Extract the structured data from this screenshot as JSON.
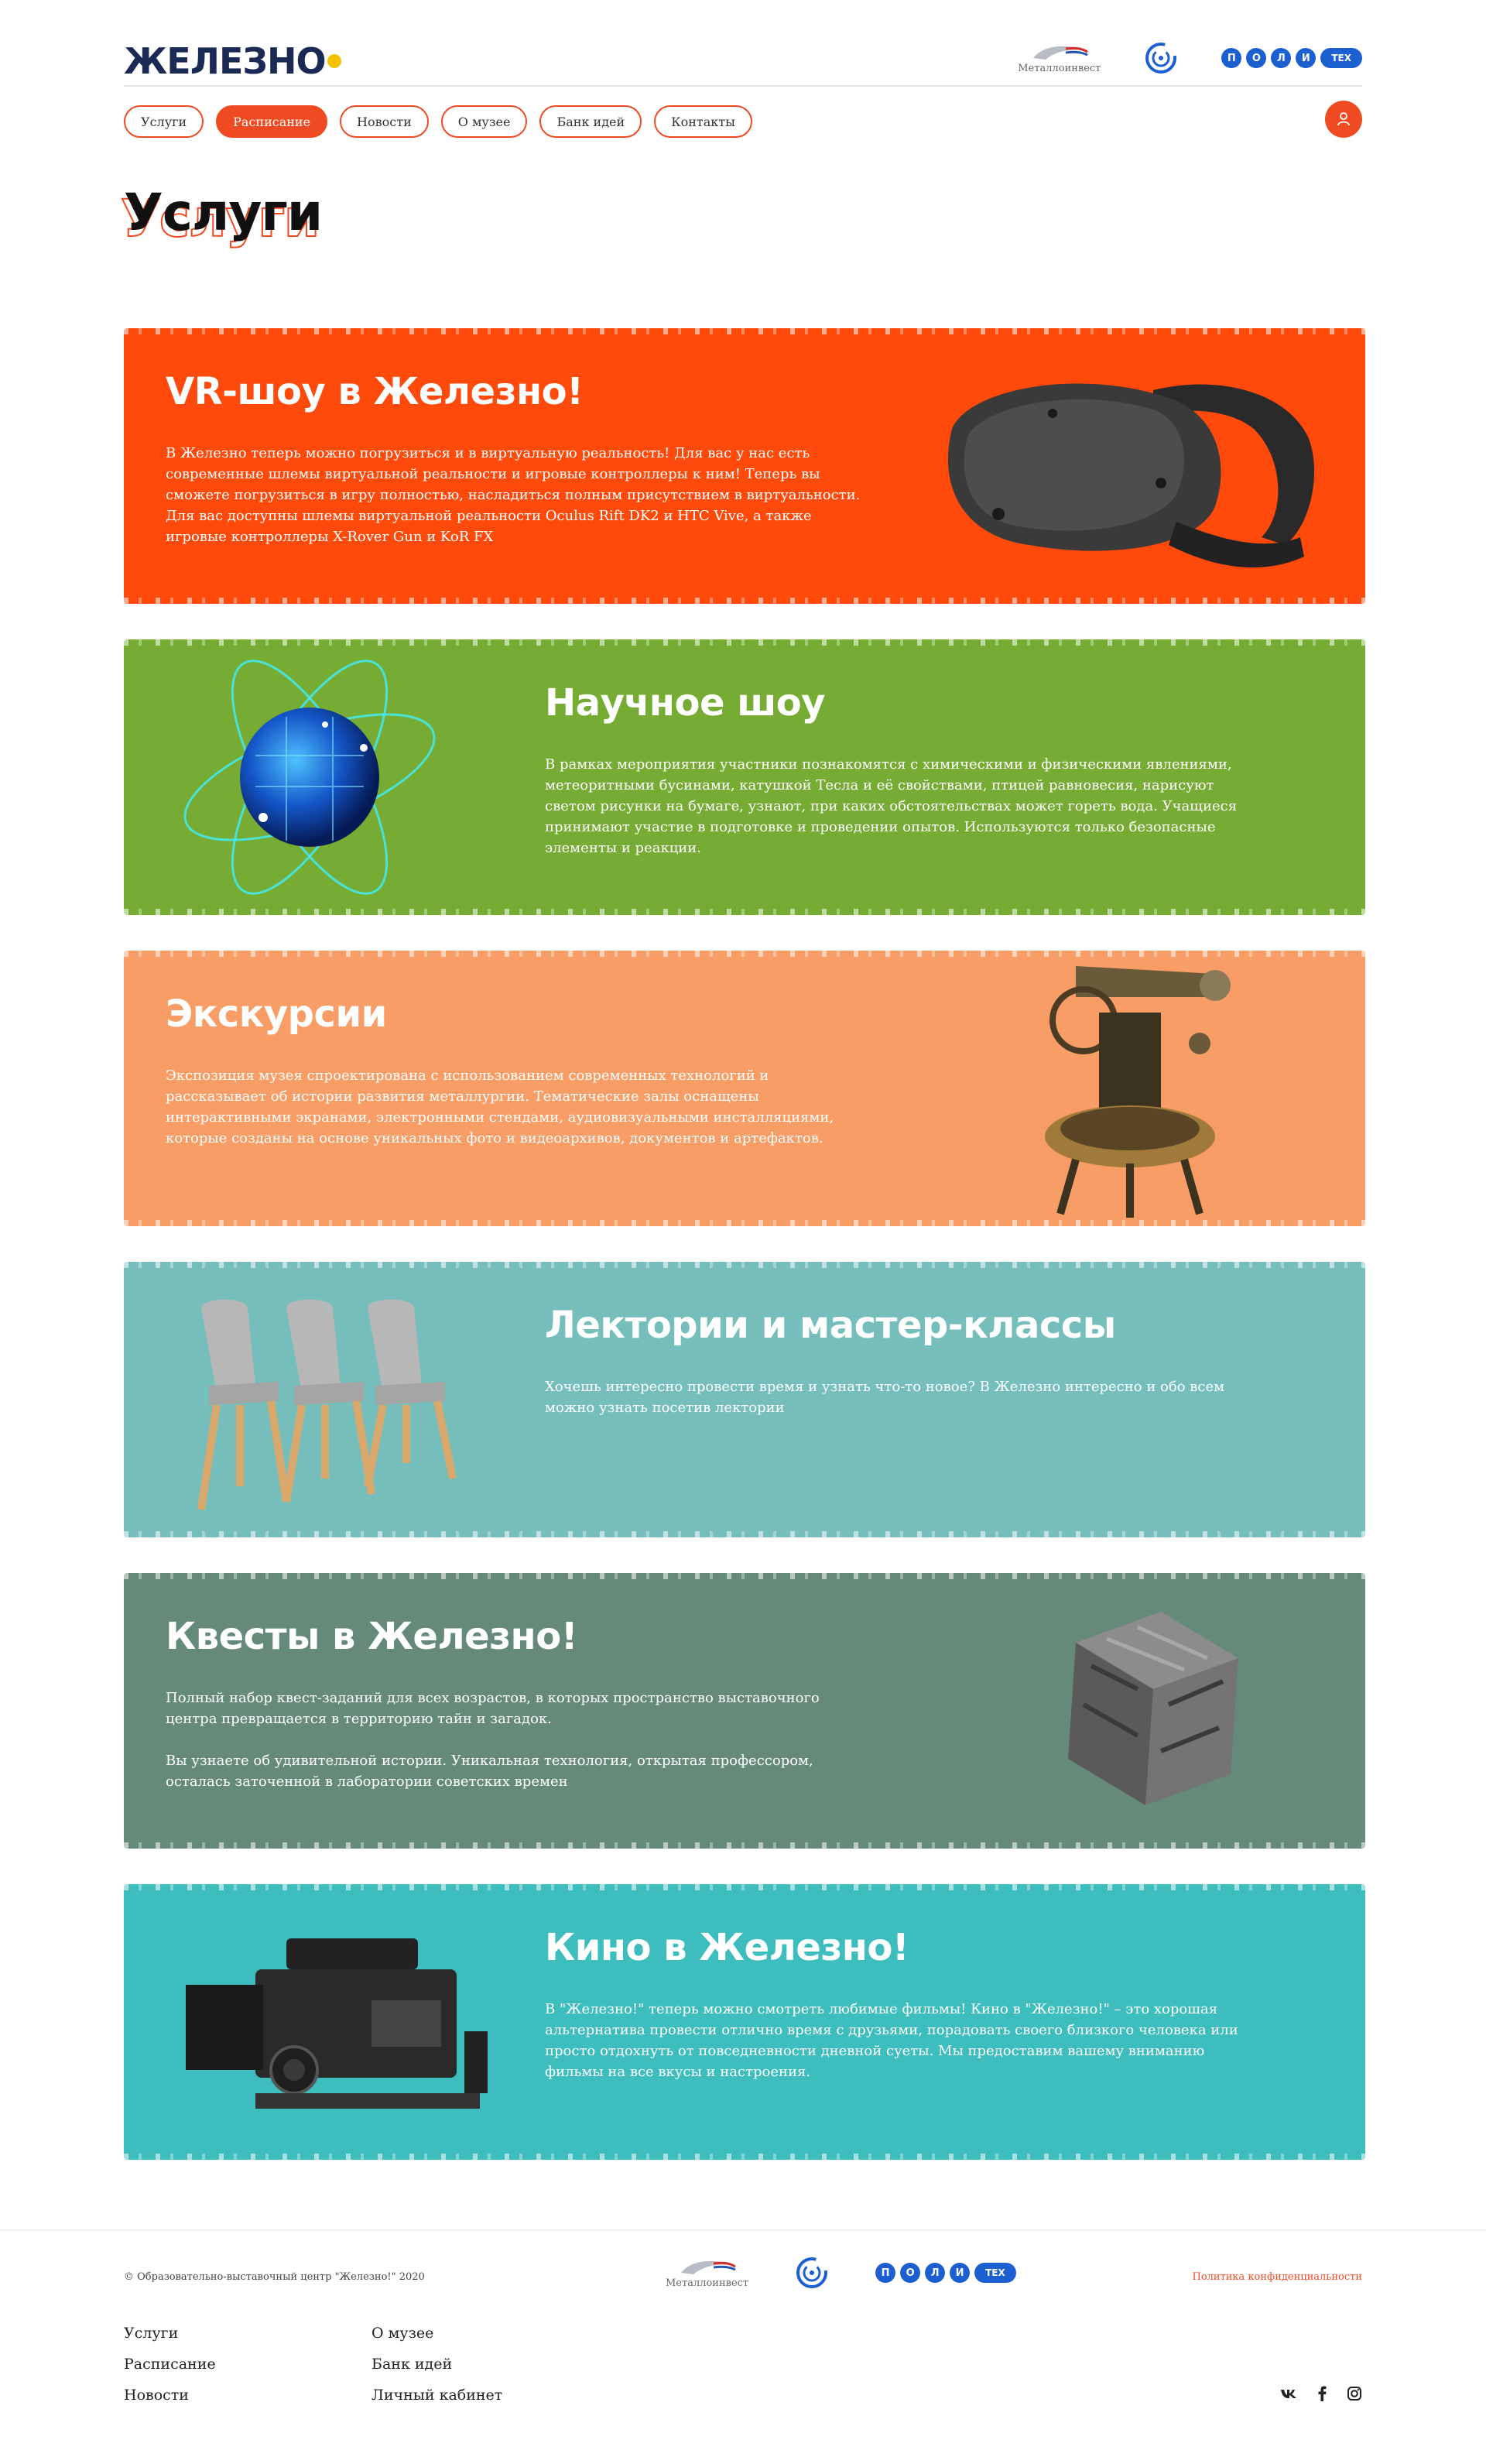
{
  "brand": {
    "logo_text": "ЖЕЛЕЗНО"
  },
  "partners": {
    "metalloinvest": "Металлоинвест",
    "politech_letters": [
      "П",
      "О",
      "Л",
      "И"
    ],
    "politech_pill": "ТЕХ"
  },
  "nav": {
    "items": [
      {
        "label": "Услуги"
      },
      {
        "label": "Расписание"
      },
      {
        "label": "Новости"
      },
      {
        "label": "О музее"
      },
      {
        "label": "Банк идей"
      },
      {
        "label": "Контакты"
      }
    ],
    "active_index": 1
  },
  "page": {
    "title": "Услуги"
  },
  "services": [
    {
      "title": "VR-шоу в Железно!",
      "paragraphs": [
        "В Железно теперь можно погрузиться и в виртуальную реальность! Для вас у нас есть современные шлемы виртуальной реальности и игровые контроллеры к ним! Теперь вы сможете погрузиться в игру полностью, насладиться полным присутствием в виртуальности. Для вас доступны шлемы виртуальной реальности Oculus Rift DK2 и HTC Vive, а также игровые контроллеры X-Rover Gun и KoR FX"
      ],
      "color": "#ff4a0c",
      "image": "vr-headset"
    },
    {
      "title": "Научное шоу",
      "paragraphs": [
        "В рамках мероприятия участники познакомятся с химическими и физическими явлениями, метеоритными бусинами, катушкой Тесла и её свойствами, птицей равновесия, нарисуют светом рисунки на бумаге, узнают, при каких обстоятельствах может гореть вода. Учащиеся принимают участие в подготовке и проведении опытов. Используются только безопасные элементы и реакции."
      ],
      "color": "#76ab34",
      "image": "atom-globe"
    },
    {
      "title": "Экскурсии",
      "paragraphs": [
        "Экспозиция музея спроектирована с использованием современных технологий и рассказывает об истории развития металлургии. Тематические залы оснащены интерактивными экранами, электронными стендами, аудиовизуальными инсталляциями, которые созданы на основе уникальных фото и видеоархивов, документов и артефактов."
      ],
      "color": "#f99d66",
      "image": "theodolite"
    },
    {
      "title": "Лектории и мастер-классы",
      "paragraphs": [
        "Хочешь интересно провести время и узнать что-то новое? В Железно интересно и обо всем можно узнать посетив лектории"
      ],
      "color": "#75bebb",
      "image": "chairs"
    },
    {
      "title": "Квесты в Железно!",
      "paragraphs": [
        "Полный набор квест-заданий для всех возрастов, в которых пространство выставочного центра превращается в территорию тайн и загадок.",
        "Вы узнаете об удивительной истории. Уникальная технология, открытая профессором, осталась заточенной в лаборатории советских времен"
      ],
      "color": "#658a7a",
      "image": "metal-cube"
    },
    {
      "title": "Кино в Железно!",
      "paragraphs": [
        "В \"Железно!\" теперь можно смотреть любимые фильмы! Кино в \"Железно!\" – это хорошая альтернатива провести отлично время с друзьями, порадовать своего близкого человека или просто отдохнуть от повседневности дневной суеты. Мы предоставим вашему вниманию фильмы на все вкусы и настроения."
      ],
      "color": "#3dbdbd",
      "image": "cinema-camera"
    }
  ],
  "footer": {
    "copyright": "© Образовательно-выставочный центр \"Железно!\" 2020",
    "privacy": "Политика конфиденциальности",
    "col1": [
      "Услуги",
      "Расписание",
      "Новости"
    ],
    "col2": [
      "О музее",
      "Банк идей",
      "Личный кабинет"
    ],
    "social": [
      {
        "label": "vk",
        "icon": "vk-icon"
      },
      {
        "label": "f",
        "icon": "facebook-icon"
      },
      {
        "label": "instagram",
        "icon": "instagram-icon"
      }
    ]
  },
  "colors": {
    "accent": "#f04a23",
    "brand_navy": "#1b2a55",
    "politech_blue": "#1b5fd1"
  }
}
